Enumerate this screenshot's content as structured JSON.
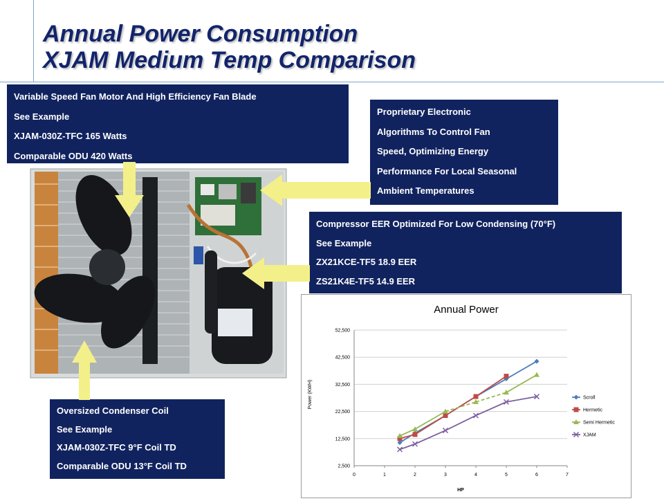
{
  "title": {
    "line1": "Annual Power Consumption",
    "line2": "XJAM Medium Temp Comparison"
  },
  "callouts": {
    "fan": [
      "Variable Speed Fan Motor And High Efficiency Fan Blade",
      "See Example",
      "XJAM-030Z-TFC  165 Watts",
      "Comparable ODU 420 Watts"
    ],
    "algorithms": [
      "Proprietary Electronic",
      "Algorithms  To Control Fan",
      "Speed, Optimizing  Energy",
      "Performance For Local Seasonal",
      "Ambient Temperatures"
    ],
    "compressor": [
      "Compressor EER Optimized For Low Condensing (70°F)",
      "See Example",
      "ZX21KCE-TF5 18.9 EER",
      "ZS21K4E-TF5  14.9 EER"
    ],
    "coil": [
      "Oversized Condenser Coil",
      "See Example",
      "XJAM-030Z-TFC  9°F Coil TD",
      "Comparable ODU 13°F Coil TD"
    ]
  },
  "colors": {
    "navy": "#11235f",
    "title": "#12246b",
    "arrow": "#f3f08a",
    "scroll": "#4a7ebb",
    "hermetic": "#be4b48",
    "semi_hermetic": "#98b954",
    "xjam": "#7d60a0"
  },
  "chart_data": {
    "type": "line",
    "title": "Annual Power",
    "xlabel": "HP",
    "ylabel": "Power (KWH)",
    "xlim": [
      0,
      7
    ],
    "ylim": [
      2500,
      52500
    ],
    "x_ticks": [
      "0",
      "1",
      "2",
      "3",
      "4",
      "5",
      "6",
      "7"
    ],
    "y_ticks": [
      "2,500",
      "12,500",
      "22,500",
      "32,500",
      "42,500",
      "52,500"
    ],
    "legend": "right",
    "grid": "horizontal",
    "series": [
      {
        "name": "Scroll",
        "marker": "diamond",
        "dashed": false,
        "x": [
          1.5,
          2,
          3,
          4,
          5,
          6
        ],
        "y": [
          11000,
          14500,
          21000,
          28000,
          34500,
          41000
        ]
      },
      {
        "name": "Hermetic",
        "marker": "square",
        "dashed": false,
        "x": [
          1.5,
          2,
          3,
          4,
          5
        ],
        "y": [
          12500,
          14000,
          21000,
          28000,
          35500
        ]
      },
      {
        "name": "Semi Hermetic",
        "marker": "triangle",
        "dashed": [
          false,
          false,
          true,
          true,
          false
        ],
        "x": [
          1.5,
          2,
          3,
          4,
          5,
          6
        ],
        "y": [
          13500,
          16000,
          22500,
          26000,
          29500,
          36000
        ]
      },
      {
        "name": "XJAM",
        "marker": "x",
        "dashed": false,
        "x": [
          1.5,
          2,
          3,
          4,
          5,
          6
        ],
        "y": [
          8500,
          10500,
          15500,
          21000,
          26000,
          28000
        ]
      }
    ]
  }
}
